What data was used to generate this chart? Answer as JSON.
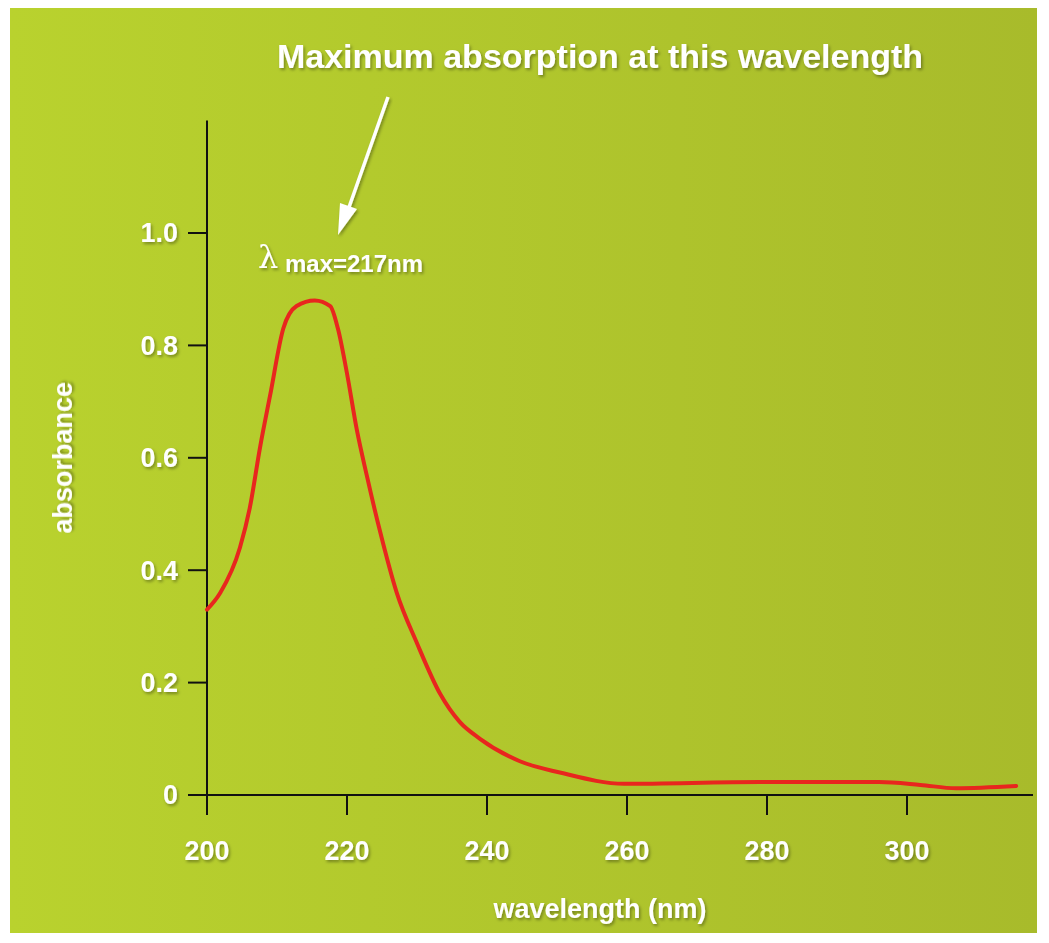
{
  "chart_data": {
    "type": "line",
    "xlabel": "wavelength (nm)",
    "ylabel": "absorbance",
    "x": [
      200,
      201.9,
      204.7,
      206.1,
      207.6,
      209,
      210.9,
      212.8,
      215.4,
      217.6,
      218.7,
      220,
      221.4,
      222.8,
      224.7,
      227.1,
      230,
      233.3,
      236.1,
      239,
      244.7,
      250.4,
      259.6,
      279,
      296,
      301.9,
      307,
      315.6
    ],
    "series": [
      {
        "color": "#e8261e",
        "values": [
          0.33,
          0.36,
          0.44,
          0.51,
          0.62,
          0.71,
          0.83,
          0.87,
          0.88,
          0.87,
          0.83,
          0.75,
          0.65,
          0.57,
          0.47,
          0.36,
          0.27,
          0.18,
          0.13,
          0.1,
          0.06,
          0.04,
          0.02,
          0.023,
          0.023,
          0.018,
          0.012,
          0.016
        ]
      }
    ],
    "xlim": [
      200,
      318
    ],
    "ylim": [
      0,
      1.2
    ],
    "xticks": [
      200,
      220,
      240,
      260,
      280,
      300
    ],
    "yticks": [
      0,
      0.2,
      0.4,
      0.6,
      0.8,
      {
        "value": 1,
        "label": "1.0"
      }
    ],
    "marker": "none",
    "line_style": "solid",
    "annotations": [
      "Maximum absorption at this wavelength",
      {
        "text": "λ max=217nm",
        "x": 217,
        "y": 0.88
      }
    ]
  }
}
